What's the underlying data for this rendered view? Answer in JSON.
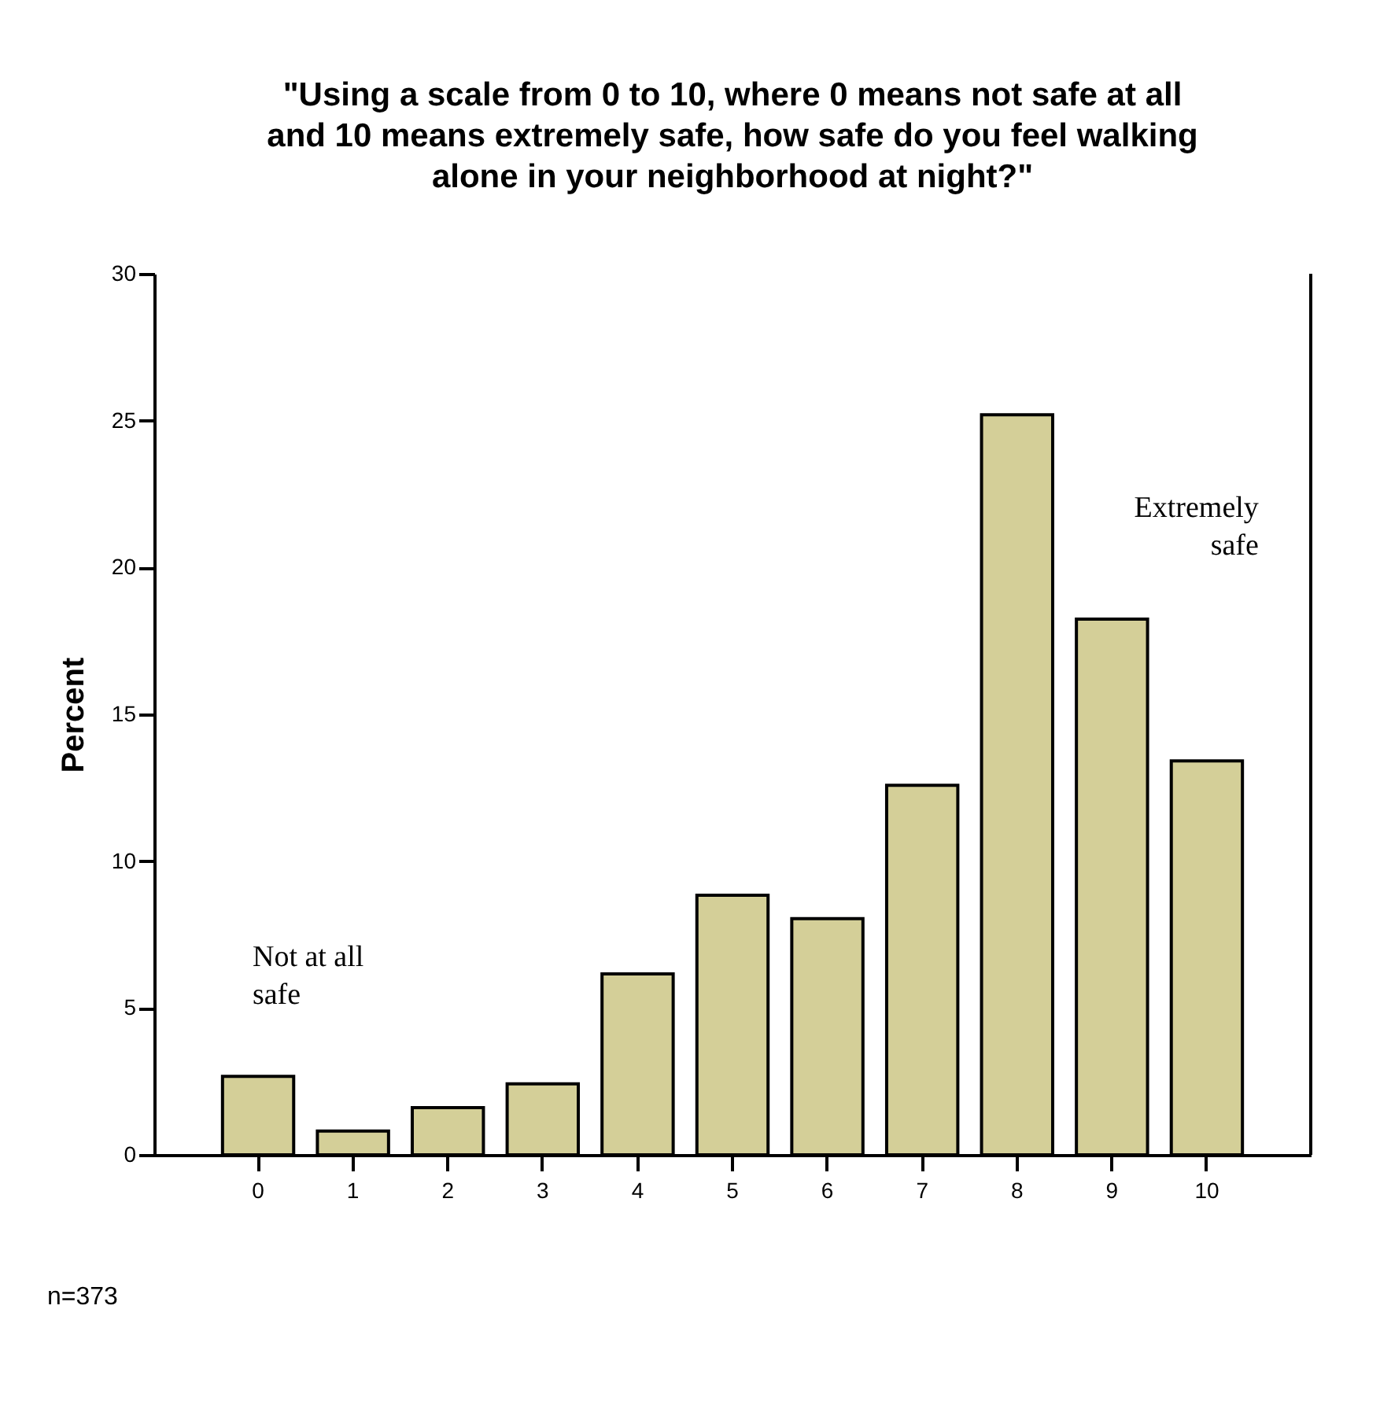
{
  "chart_data": {
    "type": "bar",
    "title": "\"Using a scale from 0 to 10, where 0 means not safe at all\nand 10 means extremely safe, how safe do you feel walking\nalone in your neighborhood at night?\"",
    "ylabel": "Percent",
    "categories": [
      "0",
      "1",
      "2",
      "3",
      "4",
      "5",
      "6",
      "7",
      "8",
      "9",
      "10"
    ],
    "values": [
      2.67,
      0.81,
      1.61,
      2.42,
      6.16,
      8.84,
      8.04,
      12.58,
      25.2,
      18.24,
      13.41
    ],
    "color": "#d4cf98",
    "ylim": [
      0,
      30
    ],
    "yticks": [
      0,
      5,
      10,
      15,
      20,
      25,
      30
    ],
    "grid": false,
    "annotations": [
      "Not at all\nsafe",
      "Extremely\nsafe",
      "n=373"
    ]
  }
}
